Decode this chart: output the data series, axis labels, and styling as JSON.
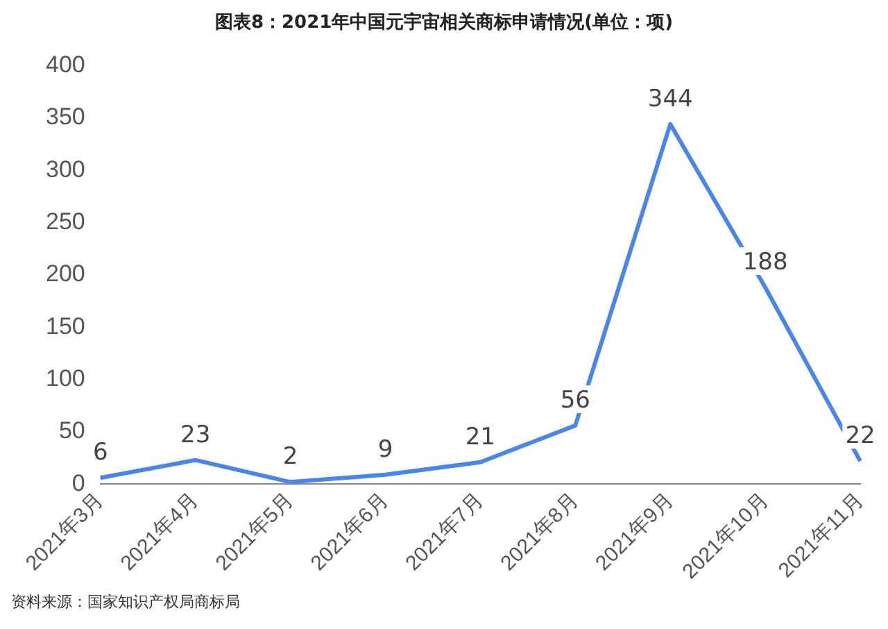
{
  "chart_data": {
    "type": "line",
    "title": "图表8：2021年中国元宇宙相关商标申请情况(单位：项)",
    "categories": [
      "2021年3月",
      "2021年4月",
      "2021年5月",
      "2021年6月",
      "2021年7月",
      "2021年8月",
      "2021年9月",
      "2021年10月",
      "2021年11月"
    ],
    "series": [
      {
        "color": "#4a86e8",
        "values": [
          6,
          23,
          2,
          9,
          21,
          56,
          344,
          188,
          22
        ]
      }
    ],
    "ylim": [
      0,
      400
    ],
    "yticks": [
      0,
      50,
      100,
      150,
      200,
      250,
      300,
      350,
      400
    ],
    "grid": false,
    "legend": false,
    "marker": "none",
    "line_style": "solid",
    "data_labels": true,
    "annotations": [
      "资料来源：国家知识产权局商标局"
    ]
  }
}
